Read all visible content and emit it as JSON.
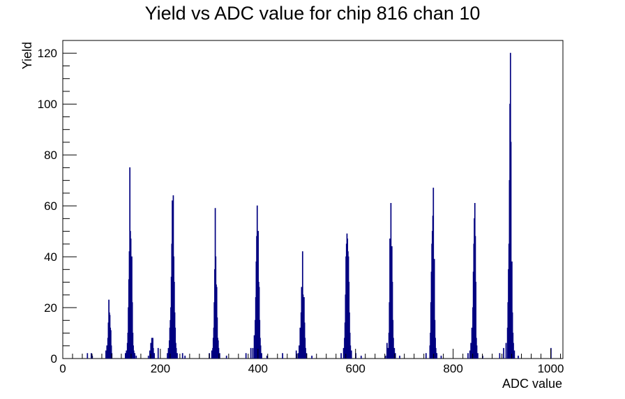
{
  "chart_data": {
    "type": "bar",
    "title": "Yield vs ADC value for chip 816 chan 10",
    "xlabel": "ADC value",
    "ylabel": "Yield",
    "xlim": [
      0,
      1025
    ],
    "ylim": [
      0,
      125
    ],
    "xticks": [
      0,
      200,
      400,
      600,
      800,
      1000
    ],
    "yticks": [
      0,
      20,
      40,
      60,
      80,
      100,
      120
    ],
    "grid": false,
    "legend": "none",
    "line_color": "#000080",
    "bin_width": 1,
    "bins": [
      [
        50,
        2
      ],
      [
        58,
        2
      ],
      [
        60,
        1
      ],
      [
        88,
        3
      ],
      [
        90,
        5
      ],
      [
        91,
        4
      ],
      [
        92,
        8
      ],
      [
        93,
        14
      ],
      [
        94,
        23
      ],
      [
        95,
        18
      ],
      [
        96,
        17
      ],
      [
        97,
        12
      ],
      [
        98,
        11
      ],
      [
        99,
        5
      ],
      [
        100,
        2
      ],
      [
        128,
        2
      ],
      [
        130,
        3
      ],
      [
        132,
        6
      ],
      [
        133,
        10
      ],
      [
        134,
        20
      ],
      [
        135,
        31
      ],
      [
        136,
        42
      ],
      [
        137,
        75
      ],
      [
        138,
        50
      ],
      [
        139,
        47
      ],
      [
        140,
        30
      ],
      [
        141,
        40
      ],
      [
        142,
        22
      ],
      [
        143,
        10
      ],
      [
        144,
        5
      ],
      [
        145,
        3
      ],
      [
        147,
        2
      ],
      [
        150,
        1
      ],
      [
        175,
        1
      ],
      [
        178,
        3
      ],
      [
        180,
        6
      ],
      [
        181,
        4
      ],
      [
        182,
        8
      ],
      [
        183,
        7
      ],
      [
        184,
        8
      ],
      [
        185,
        4
      ],
      [
        187,
        2
      ],
      [
        195,
        4
      ],
      [
        214,
        2
      ],
      [
        216,
        4
      ],
      [
        218,
        7
      ],
      [
        219,
        12
      ],
      [
        220,
        15
      ],
      [
        221,
        20
      ],
      [
        222,
        32
      ],
      [
        223,
        45
      ],
      [
        224,
        62
      ],
      [
        225,
        58
      ],
      [
        226,
        64
      ],
      [
        227,
        40
      ],
      [
        228,
        30
      ],
      [
        229,
        18
      ],
      [
        230,
        12
      ],
      [
        231,
        6
      ],
      [
        232,
        4
      ],
      [
        234,
        2
      ],
      [
        245,
        2
      ],
      [
        250,
        1
      ],
      [
        300,
        2
      ],
      [
        305,
        3
      ],
      [
        307,
        4
      ],
      [
        308,
        8
      ],
      [
        309,
        12
      ],
      [
        310,
        22
      ],
      [
        311,
        35
      ],
      [
        312,
        59
      ],
      [
        313,
        40
      ],
      [
        314,
        29
      ],
      [
        315,
        28
      ],
      [
        316,
        16
      ],
      [
        317,
        8
      ],
      [
        318,
        7
      ],
      [
        319,
        4
      ],
      [
        321,
        2
      ],
      [
        335,
        1
      ],
      [
        375,
        2
      ],
      [
        385,
        4
      ],
      [
        389,
        4
      ],
      [
        392,
        9
      ],
      [
        394,
        15
      ],
      [
        395,
        24
      ],
      [
        396,
        38
      ],
      [
        397,
        48
      ],
      [
        398,
        60
      ],
      [
        399,
        44
      ],
      [
        400,
        50
      ],
      [
        401,
        30
      ],
      [
        402,
        28
      ],
      [
        403,
        15
      ],
      [
        404,
        8
      ],
      [
        405,
        5
      ],
      [
        407,
        2
      ],
      [
        418,
        1
      ],
      [
        450,
        2
      ],
      [
        478,
        3
      ],
      [
        482,
        2
      ],
      [
        484,
        5
      ],
      [
        486,
        12
      ],
      [
        488,
        18
      ],
      [
        489,
        28
      ],
      [
        490,
        22
      ],
      [
        491,
        42
      ],
      [
        492,
        25
      ],
      [
        493,
        20
      ],
      [
        494,
        24
      ],
      [
        495,
        14
      ],
      [
        496,
        8
      ],
      [
        497,
        4
      ],
      [
        499,
        2
      ],
      [
        510,
        1
      ],
      [
        570,
        2
      ],
      [
        575,
        4
      ],
      [
        577,
        8
      ],
      [
        578,
        14
      ],
      [
        579,
        25
      ],
      [
        580,
        40
      ],
      [
        581,
        45
      ],
      [
        582,
        49
      ],
      [
        583,
        47
      ],
      [
        584,
        42
      ],
      [
        585,
        40
      ],
      [
        586,
        30
      ],
      [
        587,
        18
      ],
      [
        588,
        10
      ],
      [
        589,
        5
      ],
      [
        591,
        3
      ],
      [
        600,
        2
      ],
      [
        611,
        1
      ],
      [
        661,
        1
      ],
      [
        664,
        6
      ],
      [
        666,
        4
      ],
      [
        668,
        10
      ],
      [
        669,
        22
      ],
      [
        670,
        47
      ],
      [
        671,
        43
      ],
      [
        672,
        61
      ],
      [
        673,
        39
      ],
      [
        674,
        44
      ],
      [
        675,
        30
      ],
      [
        676,
        15
      ],
      [
        677,
        8
      ],
      [
        679,
        4
      ],
      [
        681,
        2
      ],
      [
        690,
        1
      ],
      [
        744,
        2
      ],
      [
        752,
        5
      ],
      [
        753,
        10
      ],
      [
        754,
        22
      ],
      [
        755,
        34
      ],
      [
        756,
        45
      ],
      [
        757,
        50
      ],
      [
        758,
        56
      ],
      [
        759,
        67
      ],
      [
        760,
        24
      ],
      [
        761,
        39
      ],
      [
        762,
        15
      ],
      [
        763,
        8
      ],
      [
        764,
        4
      ],
      [
        766,
        2
      ],
      [
        775,
        1
      ],
      [
        830,
        2
      ],
      [
        834,
        3
      ],
      [
        836,
        6
      ],
      [
        838,
        12
      ],
      [
        840,
        20
      ],
      [
        841,
        34
      ],
      [
        842,
        45
      ],
      [
        843,
        55
      ],
      [
        844,
        61
      ],
      [
        845,
        48
      ],
      [
        846,
        30
      ],
      [
        847,
        8
      ],
      [
        848,
        5
      ],
      [
        850,
        2
      ],
      [
        860,
        1
      ],
      [
        895,
        2
      ],
      [
        903,
        4
      ],
      [
        908,
        6
      ],
      [
        911,
        12
      ],
      [
        912,
        22
      ],
      [
        913,
        35
      ],
      [
        914,
        45
      ],
      [
        915,
        70
      ],
      [
        916,
        100
      ],
      [
        917,
        120
      ],
      [
        918,
        85
      ],
      [
        919,
        31
      ],
      [
        920,
        38
      ],
      [
        921,
        18
      ],
      [
        922,
        10
      ],
      [
        923,
        6
      ],
      [
        925,
        3
      ],
      [
        933,
        1
      ],
      [
        1000,
        4
      ]
    ]
  }
}
